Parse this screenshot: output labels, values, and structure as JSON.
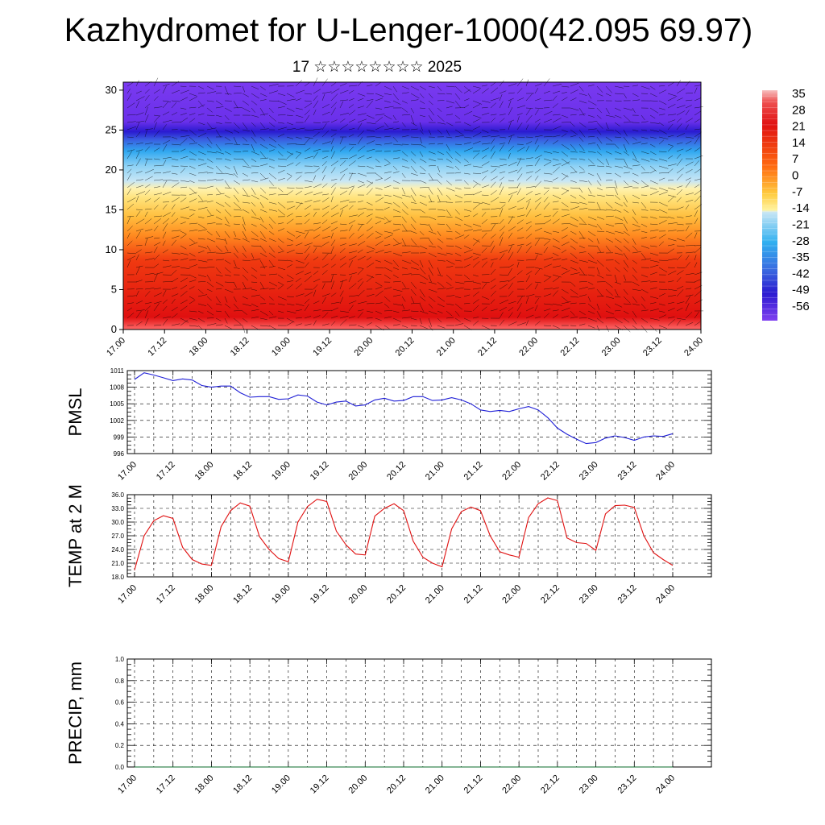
{
  "title": "Kazhydromet for U-Lenger-1000(42.095 69.97)",
  "subtitle": "17 ☆☆☆☆☆☆☆☆ 2025",
  "colors": {
    "pmsl_line": "#1f1fd6",
    "temp_line": "#e01010",
    "precip_line": "#0a6b2a"
  },
  "chart_data": [
    {
      "type": "heatmap",
      "name": "cross-section",
      "x_ticks": [
        "17.00",
        "17.12",
        "18.00",
        "18.12",
        "19.00",
        "19.12",
        "20.00",
        "20.12",
        "21.00",
        "21.12",
        "22.00",
        "22.12",
        "23.00",
        "23.12",
        "24.00"
      ],
      "y_ticks": [
        0,
        5,
        10,
        15,
        20,
        25,
        30
      ],
      "ylim": [
        0,
        31
      ],
      "colorbar": {
        "labels": [
          "35",
          "28",
          "21",
          "14",
          "7",
          "0",
          "-7",
          "-14",
          "-21",
          "-28",
          "-35",
          "-42",
          "-49",
          "-56"
        ]
      }
    },
    {
      "type": "line",
      "name": "pmsl",
      "ylabel": "PMSL",
      "x_ticks": [
        "17.00",
        "17.12",
        "18.00",
        "18.12",
        "19.00",
        "19.12",
        "20.00",
        "20.12",
        "21.00",
        "21.12",
        "22.00",
        "22.12",
        "23.00",
        "23.12",
        "24.00"
      ],
      "y_ticks": [
        "1011",
        "1008",
        "1005",
        "1002",
        "999",
        "996"
      ],
      "ylim": [
        996,
        1011
      ],
      "values": [
        1009.4,
        1010.6,
        1010.2,
        1009.7,
        1009.2,
        1009.5,
        1009.3,
        1008.3,
        1008.0,
        1008.2,
        1008.2,
        1007.0,
        1006.2,
        1006.3,
        1006.3,
        1005.8,
        1005.9,
        1006.6,
        1006.4,
        1005.3,
        1004.8,
        1005.3,
        1005.5,
        1004.6,
        1004.8,
        1005.7,
        1006.0,
        1005.5,
        1005.6,
        1006.3,
        1006.3,
        1005.6,
        1005.7,
        1006.1,
        1005.7,
        1005.0,
        1003.9,
        1003.6,
        1003.8,
        1003.6,
        1004.1,
        1004.5,
        1003.9,
        1002.5,
        1000.6,
        999.5,
        998.6,
        997.8,
        998.0,
        998.8,
        999.2,
        998.9,
        998.4,
        999.0,
        999.2,
        999.1,
        999.6
      ]
    },
    {
      "type": "line",
      "name": "temp",
      "ylabel": "TEMP at 2 M",
      "x_ticks": [
        "17.00",
        "17.12",
        "18.00",
        "18.12",
        "19.00",
        "19.12",
        "20.00",
        "20.12",
        "21.00",
        "21.12",
        "22.00",
        "22.12",
        "23.00",
        "23.12",
        "24.00"
      ],
      "y_ticks": [
        "36.0",
        "33.0",
        "30.0",
        "27.0",
        "24.0",
        "21.0",
        "18.0"
      ],
      "ylim": [
        18,
        36
      ],
      "values": [
        19.5,
        27.0,
        30.3,
        31.4,
        30.8,
        24.5,
        21.8,
        20.8,
        20.5,
        29.0,
        32.5,
        34.2,
        33.5,
        26.8,
        24.0,
        22.0,
        21.3,
        30.0,
        33.4,
        35.0,
        34.5,
        28.0,
        25.0,
        23.0,
        22.8,
        31.3,
        33.0,
        34.0,
        32.5,
        25.8,
        22.3,
        21.0,
        20.2,
        28.5,
        32.3,
        33.3,
        32.5,
        27.0,
        23.5,
        22.8,
        22.3,
        31.0,
        34.0,
        35.3,
        34.7,
        26.5,
        25.5,
        25.3,
        23.8,
        31.8,
        33.6,
        33.7,
        33.2,
        27.0,
        23.3,
        21.8,
        20.5
      ]
    },
    {
      "type": "line",
      "name": "precip",
      "ylabel": "PRECIP, mm",
      "x_ticks": [
        "17.00",
        "17.12",
        "18.00",
        "18.12",
        "19.00",
        "19.12",
        "20.00",
        "20.12",
        "21.00",
        "21.12",
        "22.00",
        "22.12",
        "23.00",
        "23.12",
        "24.00"
      ],
      "y_ticks": [
        "1.0",
        "0.8",
        "0.6",
        "0.4",
        "0.2",
        "0.0"
      ],
      "ylim": [
        0,
        1
      ],
      "values": [
        0,
        0,
        0,
        0,
        0,
        0,
        0,
        0,
        0,
        0,
        0,
        0,
        0,
        0,
        0,
        0,
        0,
        0,
        0,
        0,
        0,
        0,
        0,
        0,
        0,
        0,
        0,
        0,
        0,
        0,
        0,
        0,
        0,
        0,
        0,
        0,
        0,
        0,
        0,
        0,
        0,
        0,
        0,
        0,
        0,
        0,
        0,
        0,
        0,
        0,
        0,
        0,
        0,
        0,
        0,
        0,
        0
      ]
    }
  ]
}
